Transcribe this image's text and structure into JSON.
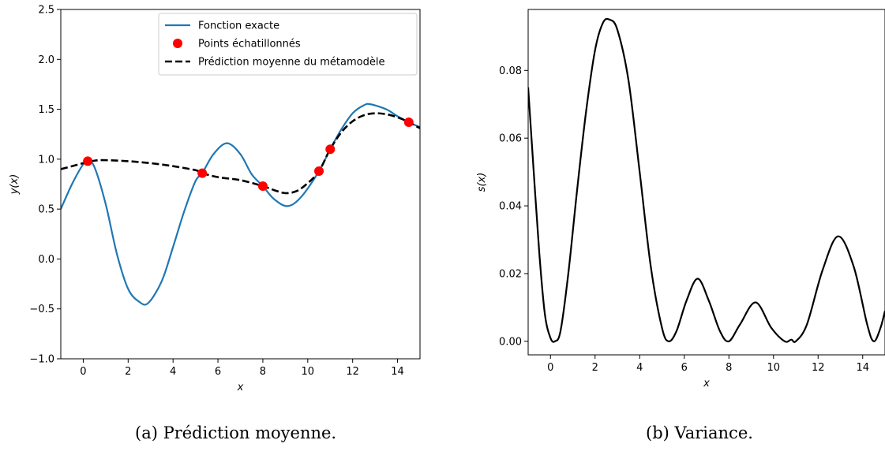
{
  "chart_data": [
    {
      "type": "line",
      "caption": "(a) Prédiction moyenne.",
      "xlabel": "x",
      "ylabel": "y(x)",
      "xlim": [
        -1,
        15
      ],
      "ylim": [
        -1.0,
        2.5
      ],
      "x_ticks": [
        0,
        2,
        4,
        6,
        8,
        10,
        12,
        14
      ],
      "y_ticks": [
        "−1.0",
        "−0.5",
        "0.0",
        "0.5",
        "1.0",
        "1.5",
        "2.0",
        "2.5"
      ],
      "legend_position": "top-right",
      "series": [
        {
          "name": "Fonction exacte",
          "style": "solid",
          "color": "#1f77b4",
          "x": [
            -1,
            -0.5,
            0,
            0.2,
            0.5,
            1,
            1.5,
            2,
            2.5,
            2.9,
            3.5,
            4,
            4.5,
            5,
            5.3,
            5.8,
            6.4,
            7,
            7.5,
            8,
            8.5,
            9.1,
            9.7,
            10.5,
            11,
            11.5,
            12,
            12.5,
            12.8,
            13.5,
            14,
            14.5,
            15
          ],
          "y": [
            0.5,
            0.75,
            0.95,
            0.98,
            0.92,
            0.55,
            0.05,
            -0.3,
            -0.43,
            -0.44,
            -0.22,
            0.12,
            0.48,
            0.78,
            0.86,
            1.05,
            1.16,
            1.05,
            0.85,
            0.73,
            0.6,
            0.53,
            0.62,
            0.88,
            1.1,
            1.3,
            1.46,
            1.54,
            1.55,
            1.5,
            1.43,
            1.37,
            1.32
          ]
        },
        {
          "name": "Points échatillonnés",
          "style": "markers",
          "color": "#ff0000",
          "x": [
            0.2,
            5.3,
            8.0,
            10.5,
            11.0,
            14.5
          ],
          "y": [
            0.98,
            0.86,
            0.73,
            0.88,
            1.1,
            1.37
          ]
        },
        {
          "name": "Prédiction moyenne du métamodèle",
          "style": "dashed",
          "color": "#000000",
          "x": [
            -1,
            -0.5,
            0,
            0.5,
            1,
            2,
            3,
            4,
            5,
            5.3,
            6,
            7,
            8,
            8.5,
            9,
            9.5,
            10,
            10.5,
            11,
            11.5,
            12,
            12.5,
            13,
            13.5,
            14,
            14.5,
            15
          ],
          "y": [
            0.9,
            0.93,
            0.96,
            0.985,
            0.99,
            0.98,
            0.96,
            0.93,
            0.89,
            0.86,
            0.82,
            0.79,
            0.73,
            0.69,
            0.66,
            0.68,
            0.76,
            0.88,
            1.1,
            1.27,
            1.38,
            1.44,
            1.46,
            1.45,
            1.42,
            1.37,
            1.31
          ]
        }
      ]
    },
    {
      "type": "line",
      "caption": "(b) Variance.",
      "xlabel": "x",
      "ylabel": "s(x)",
      "xlim": [
        -1,
        15
      ],
      "ylim": [
        -0.004,
        0.098
      ],
      "x_ticks": [
        0,
        2,
        4,
        6,
        8,
        10,
        12,
        14
      ],
      "y_ticks": [
        "0.00",
        "0.02",
        "0.04",
        "0.06",
        "0.08"
      ],
      "y_tick_values": [
        0,
        0.02,
        0.04,
        0.06,
        0.08
      ],
      "series": [
        {
          "color": "#000000",
          "style": "solid",
          "x": [
            -1,
            -0.75,
            -0.5,
            -0.25,
            0,
            0.2,
            0.45,
            0.8,
            1.2,
            1.6,
            2.0,
            2.35,
            2.65,
            3.0,
            3.5,
            4.0,
            4.5,
            5.0,
            5.3,
            5.65,
            6.1,
            6.6,
            7.1,
            7.6,
            8.0,
            8.5,
            9.2,
            9.9,
            10.5,
            10.8,
            11.0,
            11.5,
            12.2,
            12.9,
            13.6,
            14.2,
            14.5,
            14.8,
            15
          ],
          "y": [
            0.075,
            0.05,
            0.026,
            0.008,
            0.001,
            0.0,
            0.003,
            0.02,
            0.045,
            0.068,
            0.086,
            0.094,
            0.095,
            0.092,
            0.077,
            0.05,
            0.022,
            0.004,
            0.0,
            0.003,
            0.012,
            0.0185,
            0.012,
            0.003,
            0.0,
            0.005,
            0.0115,
            0.004,
            0.0,
            0.0005,
            0.0,
            0.005,
            0.021,
            0.031,
            0.022,
            0.005,
            0.0,
            0.004,
            0.009
          ]
        }
      ]
    }
  ]
}
